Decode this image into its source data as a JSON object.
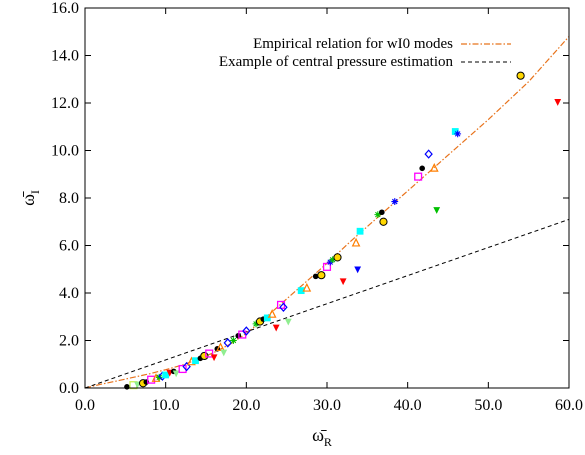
{
  "chart_data": {
    "type": "scatter",
    "xlim": [
      0,
      60
    ],
    "ylim": [
      0,
      16
    ],
    "xticks": [
      "0.0",
      "10.0",
      "20.0",
      "30.0",
      "40.0",
      "50.0",
      "60.0"
    ],
    "yticks": [
      "0.0",
      "2.0",
      "4.0",
      "6.0",
      "8.0",
      "10.0",
      "12.0",
      "14.0",
      "16.0"
    ],
    "xlabel": "ω̄",
    "xlabel_sub": "R",
    "ylabel": "ω̄",
    "ylabel_sub": "I",
    "grid": false,
    "legend_position": "top-right",
    "legend": [
      {
        "label": "Empirical relation for wI0 modes",
        "color": "#e8731c",
        "style": "dash-dot"
      },
      {
        "label": "Example of central pressure estimation",
        "color": "#000000",
        "style": "dashed"
      }
    ],
    "lines": [
      {
        "name": "Empirical relation for wI0 modes",
        "color": "#e8731c",
        "style": "dash-dot",
        "x": [
          0,
          2,
          4,
          6,
          8,
          10,
          12,
          14,
          16,
          18,
          20,
          22,
          24,
          26,
          28,
          30,
          33,
          36,
          40,
          45,
          50,
          55,
          60
        ],
        "y": [
          0,
          0.16,
          0.3,
          0.45,
          0.6,
          0.77,
          0.96,
          1.2,
          1.5,
          1.85,
          2.3,
          2.85,
          3.45,
          4.05,
          4.65,
          5.25,
          6.2,
          7.1,
          8.3,
          9.8,
          11.3,
          12.9,
          14.8
        ]
      },
      {
        "name": "Example of central pressure estimation",
        "color": "#000000",
        "style": "dashed",
        "x": [
          0,
          60
        ],
        "y": [
          0,
          7.1
        ]
      }
    ],
    "points": [
      {
        "x": 5.2,
        "y": 0.05,
        "color": "#000000",
        "shape": "circle-filled"
      },
      {
        "x": 6.0,
        "y": 0.12,
        "color": "#c8f050",
        "shape": "square"
      },
      {
        "x": 6.5,
        "y": 0.15,
        "color": "#90ee90",
        "shape": "tri-down"
      },
      {
        "x": 7.2,
        "y": 0.2,
        "color": "#ffd700",
        "shape": "circle-open"
      },
      {
        "x": 7.6,
        "y": 0.25,
        "color": "#000000",
        "shape": "circle-filled"
      },
      {
        "x": 8.2,
        "y": 0.35,
        "color": "#ff00ff",
        "shape": "square"
      },
      {
        "x": 8.8,
        "y": 0.4,
        "color": "#ff7f00",
        "shape": "tri-up"
      },
      {
        "x": 9.2,
        "y": 0.45,
        "color": "#00c000",
        "shape": "star"
      },
      {
        "x": 9.6,
        "y": 0.5,
        "color": "#0000ff",
        "shape": "diamond"
      },
      {
        "x": 10.0,
        "y": 0.55,
        "color": "#00ffff",
        "shape": "square-filled"
      },
      {
        "x": 10.5,
        "y": 0.65,
        "color": "#ff0000",
        "shape": "tri-down"
      },
      {
        "x": 11.0,
        "y": 0.7,
        "color": "#000000",
        "shape": "circle-filled"
      },
      {
        "x": 11.3,
        "y": 0.62,
        "color": "#90ee90",
        "shape": "tri-down"
      },
      {
        "x": 12.1,
        "y": 0.8,
        "color": "#ff00ff",
        "shape": "square"
      },
      {
        "x": 12.6,
        "y": 0.9,
        "color": "#0000ff",
        "shape": "diamond"
      },
      {
        "x": 13.2,
        "y": 1.1,
        "color": "#ff7f00",
        "shape": "tri-up"
      },
      {
        "x": 13.7,
        "y": 1.15,
        "color": "#00ffff",
        "shape": "square-filled"
      },
      {
        "x": 14.3,
        "y": 1.25,
        "color": "#000000",
        "shape": "circle-filled"
      },
      {
        "x": 14.8,
        "y": 1.35,
        "color": "#ffd700",
        "shape": "circle-open"
      },
      {
        "x": 15.4,
        "y": 1.45,
        "color": "#ff00ff",
        "shape": "square"
      },
      {
        "x": 16.0,
        "y": 1.3,
        "color": "#ff0000",
        "shape": "tri-down"
      },
      {
        "x": 16.4,
        "y": 1.65,
        "color": "#000000",
        "shape": "circle-filled"
      },
      {
        "x": 16.8,
        "y": 1.7,
        "color": "#ff7f00",
        "shape": "tri-up"
      },
      {
        "x": 17.2,
        "y": 1.5,
        "color": "#90ee90",
        "shape": "tri-down"
      },
      {
        "x": 17.7,
        "y": 1.9,
        "color": "#0000ff",
        "shape": "diamond"
      },
      {
        "x": 18.4,
        "y": 2.0,
        "color": "#00c000",
        "shape": "star"
      },
      {
        "x": 19.0,
        "y": 2.2,
        "color": "#000000",
        "shape": "circle-filled"
      },
      {
        "x": 19.5,
        "y": 2.25,
        "color": "#ff00ff",
        "shape": "square"
      },
      {
        "x": 20.0,
        "y": 2.4,
        "color": "#0000ff",
        "shape": "diamond"
      },
      {
        "x": 21.2,
        "y": 2.7,
        "color": "#00c000",
        "shape": "star"
      },
      {
        "x": 21.7,
        "y": 2.8,
        "color": "#ffd700",
        "shape": "circle-open"
      },
      {
        "x": 22.1,
        "y": 2.9,
        "color": "#000000",
        "shape": "circle-filled"
      },
      {
        "x": 22.6,
        "y": 2.95,
        "color": "#00ffff",
        "shape": "square-filled"
      },
      {
        "x": 23.2,
        "y": 3.1,
        "color": "#ff7f00",
        "shape": "tri-up"
      },
      {
        "x": 23.7,
        "y": 2.55,
        "color": "#ff0000",
        "shape": "tri-down"
      },
      {
        "x": 24.3,
        "y": 3.5,
        "color": "#ff00ff",
        "shape": "square"
      },
      {
        "x": 24.6,
        "y": 3.4,
        "color": "#0000ff",
        "shape": "diamond"
      },
      {
        "x": 25.2,
        "y": 2.8,
        "color": "#90ee90",
        "shape": "tri-down"
      },
      {
        "x": 26.8,
        "y": 4.1,
        "color": "#00ffff",
        "shape": "square-filled"
      },
      {
        "x": 27.5,
        "y": 4.2,
        "color": "#ff7f00",
        "shape": "tri-up"
      },
      {
        "x": 28.6,
        "y": 4.7,
        "color": "#000000",
        "shape": "circle-filled"
      },
      {
        "x": 29.3,
        "y": 4.75,
        "color": "#ffd700",
        "shape": "circle-open"
      },
      {
        "x": 30.0,
        "y": 5.1,
        "color": "#ff00ff",
        "shape": "square"
      },
      {
        "x": 30.4,
        "y": 5.3,
        "color": "#0000ff",
        "shape": "star"
      },
      {
        "x": 30.7,
        "y": 5.4,
        "color": "#00c000",
        "shape": "star"
      },
      {
        "x": 31.3,
        "y": 5.5,
        "color": "#ffd700",
        "shape": "circle-open"
      },
      {
        "x": 32.0,
        "y": 4.5,
        "color": "#ff0000",
        "shape": "tri-down"
      },
      {
        "x": 33.6,
        "y": 6.1,
        "color": "#ff7f00",
        "shape": "tri-up"
      },
      {
        "x": 33.8,
        "y": 5.0,
        "color": "#0000ff",
        "shape": "tri-down"
      },
      {
        "x": 34.1,
        "y": 6.6,
        "color": "#00ffff",
        "shape": "square-filled"
      },
      {
        "x": 36.3,
        "y": 7.3,
        "color": "#00c000",
        "shape": "star"
      },
      {
        "x": 36.8,
        "y": 7.4,
        "color": "#000000",
        "shape": "circle-filled"
      },
      {
        "x": 37.0,
        "y": 7.0,
        "color": "#ffd700",
        "shape": "circle-open"
      },
      {
        "x": 38.4,
        "y": 7.85,
        "color": "#0000ff",
        "shape": "star"
      },
      {
        "x": 41.3,
        "y": 8.9,
        "color": "#ff00ff",
        "shape": "square"
      },
      {
        "x": 41.8,
        "y": 9.25,
        "color": "#000000",
        "shape": "circle-filled"
      },
      {
        "x": 42.6,
        "y": 9.85,
        "color": "#0000ff",
        "shape": "diamond"
      },
      {
        "x": 43.3,
        "y": 9.25,
        "color": "#ff7f00",
        "shape": "tri-up"
      },
      {
        "x": 43.6,
        "y": 7.5,
        "color": "#00c000",
        "shape": "tri-down"
      },
      {
        "x": 45.9,
        "y": 10.8,
        "color": "#00ffff",
        "shape": "square-filled"
      },
      {
        "x": 46.2,
        "y": 10.7,
        "color": "#0000ff",
        "shape": "star"
      },
      {
        "x": 54.0,
        "y": 13.15,
        "color": "#ffd700",
        "shape": "circle-open"
      },
      {
        "x": 58.6,
        "y": 12.05,
        "color": "#ff0000",
        "shape": "tri-down"
      }
    ]
  }
}
